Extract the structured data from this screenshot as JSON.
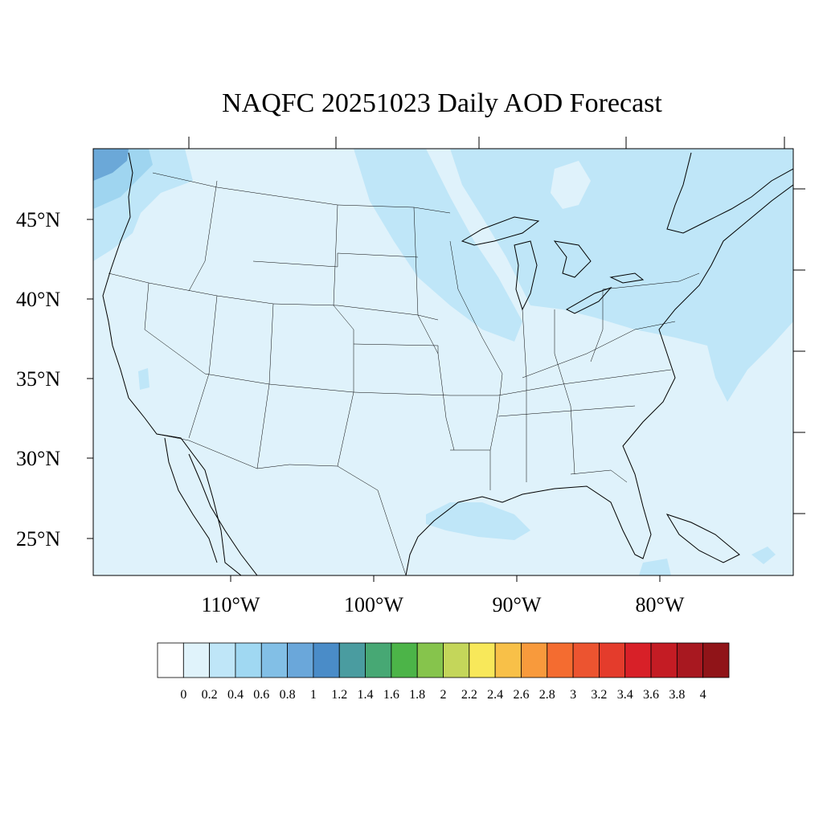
{
  "title": "NAQFC 20251023 Daily AOD Forecast",
  "lat_labels": [
    "45°N",
    "40°N",
    "35°N",
    "30°N",
    "25°N"
  ],
  "lon_labels": [
    "110°W",
    "100°W",
    "90°W",
    "80°W"
  ],
  "colorbar": {
    "labels": [
      "0",
      "0.2",
      "0.4",
      "0.6",
      "0.8",
      "1",
      "1.2",
      "1.4",
      "1.6",
      "1.8",
      "2",
      "2.2",
      "2.4",
      "2.6",
      "2.8",
      "3",
      "3.2",
      "3.4",
      "3.6",
      "3.8",
      "4"
    ],
    "colors": [
      "#ffffff",
      "#e0f3fb",
      "#bfe6f8",
      "#a0d8f2",
      "#82bfe6",
      "#6aa7da",
      "#4a8cc8",
      "#4a9ca0",
      "#47a874",
      "#4cb448",
      "#86c44c",
      "#c4d65a",
      "#f8e85a",
      "#f8c048",
      "#f89a3c",
      "#f46c30",
      "#ec5430",
      "#e43c2c",
      "#d82028",
      "#c41c24",
      "#a81820",
      "#901418"
    ]
  },
  "map_colors": {
    "background": "#dff2fb",
    "aod_0_4_0_6": "#bfe6f8",
    "aod_0_6_0_8": "#9fd5f0",
    "aod_0_8_1": "#6ba8d8"
  }
}
